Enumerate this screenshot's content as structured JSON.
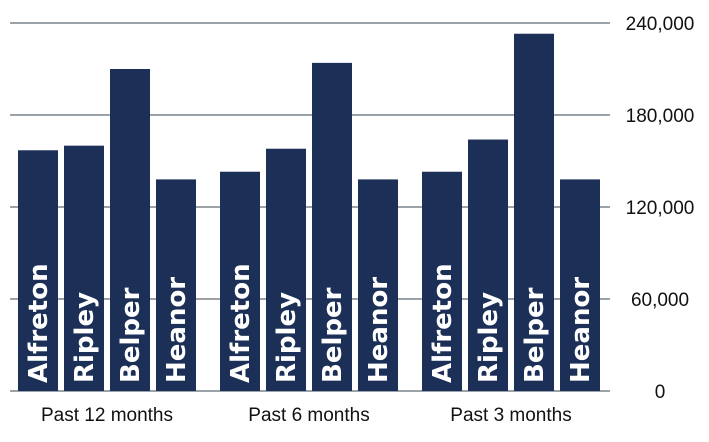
{
  "chart_data": {
    "type": "bar",
    "groups": [
      "Past 12 months",
      "Past 6 months",
      "Past 3 months"
    ],
    "categories": [
      "Alfreton",
      "Ripley",
      "Belper",
      "Heanor"
    ],
    "series": [
      {
        "group": "Past 12 months",
        "values": [
          157000,
          160000,
          210000,
          138000
        ]
      },
      {
        "group": "Past 6 months",
        "values": [
          143000,
          158000,
          214000,
          138000
        ]
      },
      {
        "group": "Past 3 months",
        "values": [
          143000,
          164000,
          233000,
          138000
        ]
      }
    ],
    "ylim": [
      0,
      240000
    ],
    "yticks": [
      0,
      60000,
      120000,
      180000,
      240000
    ],
    "ytick_labels": [
      "0",
      "60,000",
      "120,000",
      "180,000",
      "240,000"
    ],
    "y_axis_position": "right",
    "grid": true,
    "colors": {
      "bar": "#1b2f57",
      "bar_label": "#ffffff",
      "grid": "#9aa3aa"
    }
  }
}
